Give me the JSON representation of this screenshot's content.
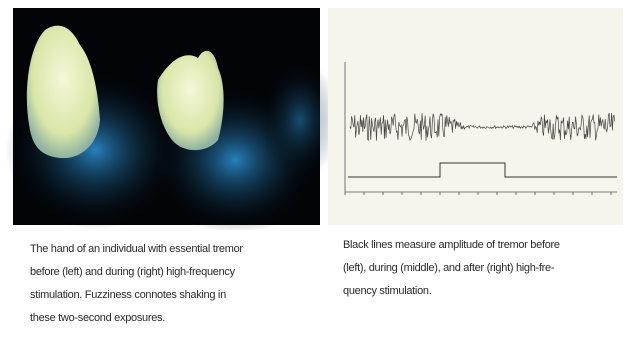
{
  "left_caption": {
    "lines": [
      "The hand of an individual with essential tremor",
      "before (left) and during (right) high-frequency",
      "stimulation. Fuzziness connotes shaking in",
      "these two-second exposures."
    ]
  },
  "right_caption": {
    "lines": [
      "Black lines measure amplitude of tremor before",
      "(left), during (middle), and after (right) high-fre-",
      "quency stimulation."
    ]
  }
}
